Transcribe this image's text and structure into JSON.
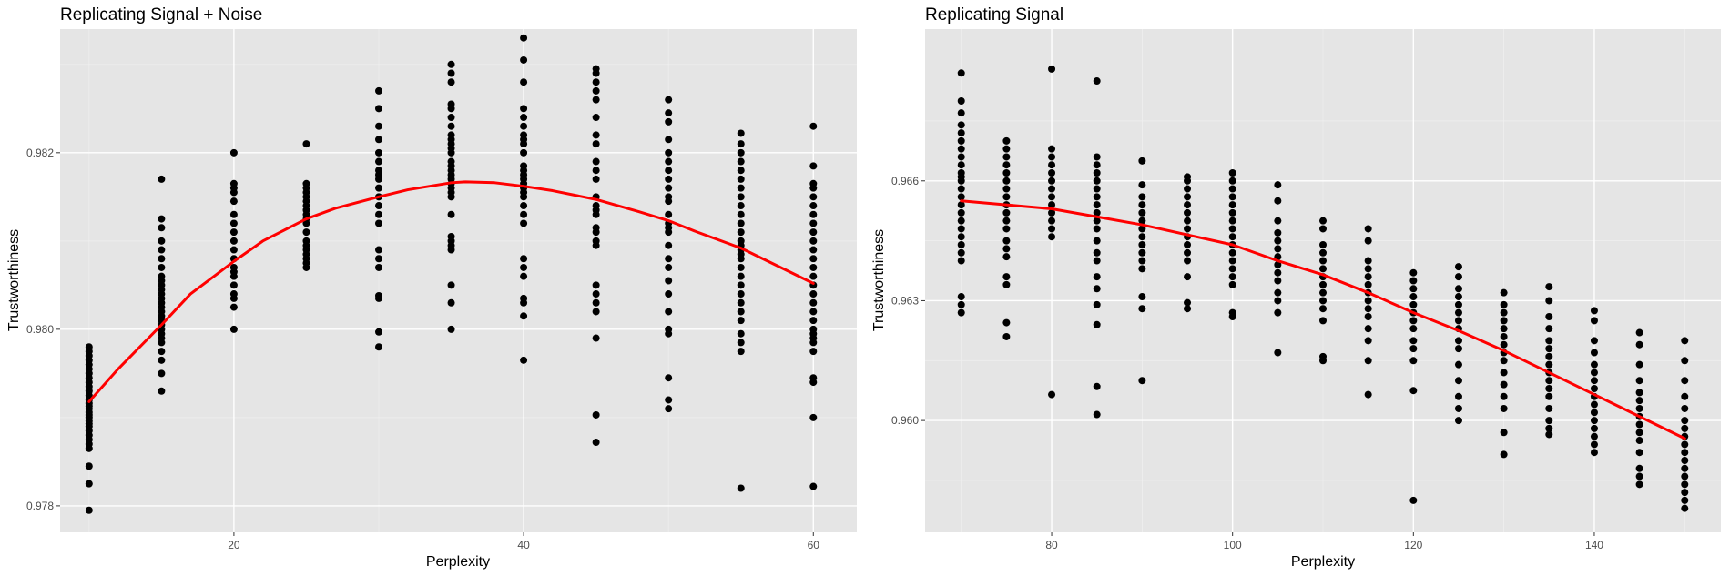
{
  "colors": {
    "panel_background": "#e5e5e5",
    "grid_major": "#ffffff",
    "grid_minor": "#f0f0f0",
    "points": "#000000",
    "fit_line": "#ff0000",
    "tick_label": "#4d4d4d"
  },
  "chart_data": [
    {
      "type": "scatter",
      "title": "Replicating Signal + Noise",
      "xlabel": "Perplexity",
      "ylabel": "Trustworthiness",
      "xlim": [
        8,
        63
      ],
      "ylim": [
        0.9777,
        0.9834
      ],
      "xticks": [
        20,
        40,
        60
      ],
      "xtick_labels": [
        "20",
        "40",
        "60"
      ],
      "yticks": [
        0.978,
        0.98,
        0.982
      ],
      "ytick_labels": [
        "0.978",
        "0.980",
        "0.982"
      ],
      "grid": true,
      "legend": "none",
      "point_color": "#000000",
      "groups": [
        {
          "x": 10,
          "y": [
            0.97795,
            0.97825,
            0.97845,
            0.97865,
            0.9787,
            0.97875,
            0.9788,
            0.97885,
            0.9789,
            0.97893,
            0.97896,
            0.979,
            0.97903,
            0.97906,
            0.9791,
            0.97913,
            0.97916,
            0.9792,
            0.97925,
            0.9793,
            0.97935,
            0.9794,
            0.97945,
            0.9795,
            0.97955,
            0.9796,
            0.97965,
            0.9797,
            0.97975,
            0.9798
          ]
        },
        {
          "x": 15,
          "y": [
            0.9793,
            0.9795,
            0.97965,
            0.97975,
            0.97985,
            0.9799,
            0.97995,
            0.98,
            0.98005,
            0.9801,
            0.98015,
            0.9802,
            0.98025,
            0.9803,
            0.98035,
            0.9804,
            0.98045,
            0.9805,
            0.98055,
            0.9806,
            0.9807,
            0.9808,
            0.9809,
            0.981,
            0.98115,
            0.98125,
            0.9817
          ]
        },
        {
          "x": 20,
          "y": [
            0.98,
            0.98025,
            0.98035,
            0.9804,
            0.9805,
            0.9806,
            0.98065,
            0.9807,
            0.9808,
            0.9809,
            0.981,
            0.9811,
            0.9812,
            0.9813,
            0.98145,
            0.98155,
            0.9816,
            0.98165,
            0.982
          ]
        },
        {
          "x": 25,
          "y": [
            0.9807,
            0.98075,
            0.9808,
            0.98085,
            0.9809,
            0.98095,
            0.981,
            0.9811,
            0.9812,
            0.98125,
            0.9813,
            0.98135,
            0.9814,
            0.98145,
            0.9815,
            0.98155,
            0.9816,
            0.98165,
            0.9821
          ]
        },
        {
          "x": 30,
          "y": [
            0.9798,
            0.97997,
            0.98035,
            0.98038,
            0.9807,
            0.9808,
            0.9809,
            0.9812,
            0.9813,
            0.9814,
            0.9815,
            0.9816,
            0.9817,
            0.98175,
            0.9818,
            0.9819,
            0.982,
            0.98215,
            0.9823,
            0.9825,
            0.9827
          ]
        },
        {
          "x": 35,
          "y": [
            0.98,
            0.9803,
            0.9805,
            0.9809,
            0.98095,
            0.981,
            0.98105,
            0.9813,
            0.9815,
            0.98155,
            0.9816,
            0.98165,
            0.9817,
            0.98175,
            0.9818,
            0.98185,
            0.9819,
            0.982,
            0.98205,
            0.9821,
            0.98215,
            0.9822,
            0.9823,
            0.9824,
            0.9825,
            0.98255,
            0.9828,
            0.9829,
            0.983
          ]
        },
        {
          "x": 40,
          "y": [
            0.97965,
            0.98015,
            0.9803,
            0.98035,
            0.9806,
            0.9807,
            0.9808,
            0.9812,
            0.9813,
            0.9814,
            0.9815,
            0.98155,
            0.9816,
            0.98165,
            0.9817,
            0.98175,
            0.9818,
            0.98185,
            0.982,
            0.9821,
            0.98215,
            0.9822,
            0.9823,
            0.9824,
            0.9825,
            0.9828,
            0.98305,
            0.9833
          ]
        },
        {
          "x": 45,
          "y": [
            0.97872,
            0.97903,
            0.9799,
            0.9802,
            0.9803,
            0.9804,
            0.9805,
            0.98095,
            0.981,
            0.9811,
            0.98115,
            0.9813,
            0.98135,
            0.9814,
            0.9815,
            0.9817,
            0.9818,
            0.9819,
            0.9821,
            0.9822,
            0.9824,
            0.9826,
            0.9827,
            0.9828,
            0.9829,
            0.98295
          ]
        },
        {
          "x": 50,
          "y": [
            0.9791,
            0.9792,
            0.97945,
            0.97995,
            0.98,
            0.9802,
            0.9804,
            0.98055,
            0.9807,
            0.9808,
            0.98095,
            0.9811,
            0.98115,
            0.9812,
            0.9813,
            0.98145,
            0.9815,
            0.9816,
            0.9817,
            0.9818,
            0.9819,
            0.982,
            0.98215,
            0.98235,
            0.98245,
            0.9826
          ]
        },
        {
          "x": 55,
          "y": [
            0.9782,
            0.97975,
            0.97985,
            0.97995,
            0.9801,
            0.9802,
            0.9803,
            0.9804,
            0.9805,
            0.9806,
            0.9807,
            0.9808,
            0.98085,
            0.9809,
            0.98095,
            0.981,
            0.9811,
            0.9812,
            0.9813,
            0.9814,
            0.9815,
            0.9816,
            0.9817,
            0.9818,
            0.9819,
            0.982,
            0.9821,
            0.98222
          ]
        },
        {
          "x": 60,
          "y": [
            0.97822,
            0.979,
            0.9794,
            0.97945,
            0.97975,
            0.97985,
            0.9799,
            0.97995,
            0.98,
            0.9801,
            0.9802,
            0.9803,
            0.9804,
            0.9805,
            0.9806,
            0.9807,
            0.9808,
            0.9809,
            0.981,
            0.9811,
            0.9812,
            0.9813,
            0.9814,
            0.9815,
            0.9816,
            0.98165,
            0.98185,
            0.9823
          ]
        }
      ],
      "fit_line": {
        "color": "#ff0000",
        "x": [
          10,
          12,
          15,
          17,
          20,
          22,
          25,
          27,
          30,
          32,
          35,
          36,
          38,
          40,
          42,
          45,
          48,
          50,
          52,
          55,
          58,
          60
        ],
        "y": [
          0.97918,
          0.97955,
          0.98005,
          0.9804,
          0.98077,
          0.981,
          0.98125,
          0.98137,
          0.9815,
          0.98158,
          0.98166,
          0.98167,
          0.98166,
          0.98162,
          0.98157,
          0.98147,
          0.98133,
          0.98123,
          0.9811,
          0.98092,
          0.98068,
          0.98052
        ]
      }
    },
    {
      "type": "scatter",
      "title": "Replicating Signal",
      "xlabel": "Perplexity",
      "ylabel": "Trustworthiness",
      "xlim": [
        66,
        154
      ],
      "ylim": [
        0.9572,
        0.9698
      ],
      "xticks": [
        80,
        100,
        120,
        140
      ],
      "xtick_labels": [
        "80",
        "100",
        "120",
        "140"
      ],
      "yticks": [
        0.96,
        0.963,
        0.966
      ],
      "ytick_labels": [
        "0.960",
        "0.963",
        "0.966"
      ],
      "grid": true,
      "legend": "none",
      "point_color": "#000000",
      "groups": [
        {
          "x": 70,
          "y": [
            0.9627,
            0.9629,
            0.9631,
            0.964,
            0.9642,
            0.9644,
            0.9646,
            0.9648,
            0.965,
            0.9652,
            0.9654,
            0.9656,
            0.9658,
            0.966,
            0.9661,
            0.9662,
            0.9664,
            0.9666,
            0.9668,
            0.967,
            0.9672,
            0.9674,
            0.9677,
            0.968,
            0.9687
          ]
        },
        {
          "x": 75,
          "y": [
            0.9621,
            0.96245,
            0.9634,
            0.9636,
            0.9641,
            0.9643,
            0.9645,
            0.9648,
            0.965,
            0.9652,
            0.9654,
            0.9656,
            0.9658,
            0.966,
            0.9662,
            0.9664,
            0.9666,
            0.9668,
            0.967
          ]
        },
        {
          "x": 80,
          "y": [
            0.96065,
            0.9646,
            0.9648,
            0.965,
            0.9652,
            0.9654,
            0.9656,
            0.9658,
            0.966,
            0.9662,
            0.9664,
            0.9666,
            0.9668,
            0.9688
          ]
        },
        {
          "x": 85,
          "y": [
            0.96015,
            0.96085,
            0.9624,
            0.9629,
            0.9633,
            0.9636,
            0.964,
            0.9642,
            0.9645,
            0.9648,
            0.965,
            0.9652,
            0.9654,
            0.9656,
            0.9658,
            0.966,
            0.9662,
            0.9664,
            0.9666,
            0.9685
          ]
        },
        {
          "x": 90,
          "y": [
            0.961,
            0.9628,
            0.9631,
            0.9638,
            0.964,
            0.9642,
            0.9644,
            0.9646,
            0.9648,
            0.965,
            0.9652,
            0.9654,
            0.9656,
            0.9659,
            0.9665
          ]
        },
        {
          "x": 95,
          "y": [
            0.9628,
            0.96295,
            0.9636,
            0.964,
            0.9642,
            0.9644,
            0.9646,
            0.9648,
            0.965,
            0.9652,
            0.9654,
            0.9656,
            0.9658,
            0.966,
            0.9661
          ]
        },
        {
          "x": 100,
          "y": [
            0.9626,
            0.9627,
            0.9634,
            0.9636,
            0.9638,
            0.964,
            0.9642,
            0.9644,
            0.9646,
            0.9648,
            0.965,
            0.9652,
            0.9654,
            0.9656,
            0.9658,
            0.966,
            0.9662
          ]
        },
        {
          "x": 105,
          "y": [
            0.9617,
            0.9627,
            0.963,
            0.9632,
            0.9635,
            0.9637,
            0.9639,
            0.9641,
            0.9643,
            0.9645,
            0.9647,
            0.965,
            0.9655,
            0.9659
          ]
        },
        {
          "x": 110,
          "y": [
            0.9615,
            0.9616,
            0.9625,
            0.9628,
            0.963,
            0.9632,
            0.9634,
            0.9636,
            0.9638,
            0.964,
            0.9642,
            0.9644,
            0.9648,
            0.965
          ]
        },
        {
          "x": 115,
          "y": [
            0.96065,
            0.9615,
            0.962,
            0.9623,
            0.9626,
            0.9628,
            0.963,
            0.9632,
            0.9634,
            0.9636,
            0.9638,
            0.964,
            0.9645,
            0.9648
          ]
        },
        {
          "x": 120,
          "y": [
            0.958,
            0.96075,
            0.9615,
            0.9618,
            0.962,
            0.9623,
            0.9625,
            0.9627,
            0.9629,
            0.9631,
            0.9633,
            0.9635,
            0.9637
          ]
        },
        {
          "x": 125,
          "y": [
            0.96,
            0.9603,
            0.9606,
            0.961,
            0.9614,
            0.9618,
            0.962,
            0.9623,
            0.9625,
            0.9627,
            0.9629,
            0.9631,
            0.9633,
            0.9636,
            0.96385
          ]
        },
        {
          "x": 130,
          "y": [
            0.95915,
            0.9597,
            0.9603,
            0.9606,
            0.9609,
            0.9612,
            0.9615,
            0.9617,
            0.9619,
            0.9621,
            0.9623,
            0.9625,
            0.9627,
            0.9629,
            0.9632
          ]
        },
        {
          "x": 135,
          "y": [
            0.95965,
            0.9598,
            0.96,
            0.9603,
            0.9606,
            0.9608,
            0.961,
            0.9612,
            0.9614,
            0.9616,
            0.9618,
            0.962,
            0.9623,
            0.9626,
            0.963,
            0.96335
          ]
        },
        {
          "x": 140,
          "y": [
            0.9592,
            0.9594,
            0.9596,
            0.9598,
            0.96,
            0.9602,
            0.9604,
            0.9606,
            0.9608,
            0.961,
            0.9612,
            0.9614,
            0.9617,
            0.962,
            0.9625,
            0.96275
          ]
        },
        {
          "x": 145,
          "y": [
            0.9584,
            0.9586,
            0.9588,
            0.9592,
            0.9595,
            0.9597,
            0.9599,
            0.9601,
            0.9603,
            0.9605,
            0.9607,
            0.961,
            0.9614,
            0.9619,
            0.9622
          ]
        },
        {
          "x": 150,
          "y": [
            0.9578,
            0.958,
            0.9582,
            0.9584,
            0.9586,
            0.9588,
            0.959,
            0.9592,
            0.9594,
            0.9596,
            0.9598,
            0.96,
            0.9603,
            0.9606,
            0.961,
            0.9615,
            0.962
          ]
        }
      ],
      "fit_line": {
        "color": "#ff0000",
        "x": [
          70,
          75,
          80,
          85,
          90,
          95,
          100,
          105,
          110,
          115,
          120,
          125,
          130,
          135,
          140,
          145,
          150
        ],
        "y": [
          0.9655,
          0.9654,
          0.9653,
          0.9651,
          0.9649,
          0.96465,
          0.9644,
          0.964,
          0.96365,
          0.9632,
          0.9627,
          0.96225,
          0.96175,
          0.9612,
          0.96065,
          0.9601,
          0.95955
        ]
      }
    }
  ]
}
